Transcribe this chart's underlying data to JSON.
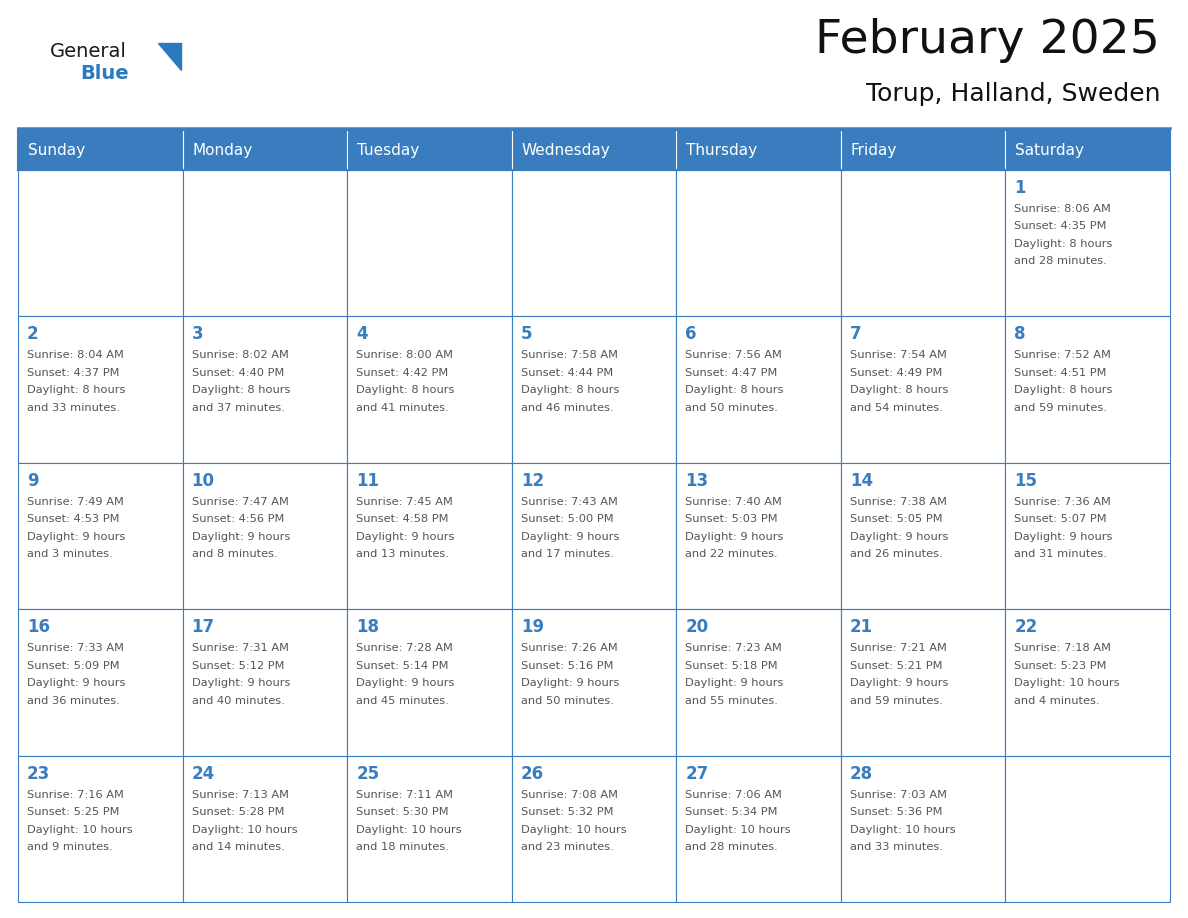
{
  "title": "February 2025",
  "subtitle": "Torup, Halland, Sweden",
  "days_of_week": [
    "Sunday",
    "Monday",
    "Tuesday",
    "Wednesday",
    "Thursday",
    "Friday",
    "Saturday"
  ],
  "header_bg": "#3a7dbf",
  "header_text": "#ffffff",
  "cell_bg": "#ffffff",
  "border_color": "#3a7dbf",
  "day_num_color": "#3a7dbf",
  "info_color": "#555555",
  "title_color": "#111111",
  "weeks": [
    [
      {
        "day": null,
        "sunrise": null,
        "sunset": null,
        "daylight": null
      },
      {
        "day": null,
        "sunrise": null,
        "sunset": null,
        "daylight": null
      },
      {
        "day": null,
        "sunrise": null,
        "sunset": null,
        "daylight": null
      },
      {
        "day": null,
        "sunrise": null,
        "sunset": null,
        "daylight": null
      },
      {
        "day": null,
        "sunrise": null,
        "sunset": null,
        "daylight": null
      },
      {
        "day": null,
        "sunrise": null,
        "sunset": null,
        "daylight": null
      },
      {
        "day": 1,
        "sunrise": "8:06 AM",
        "sunset": "4:35 PM",
        "daylight": "8 hours\nand 28 minutes."
      }
    ],
    [
      {
        "day": 2,
        "sunrise": "8:04 AM",
        "sunset": "4:37 PM",
        "daylight": "8 hours\nand 33 minutes."
      },
      {
        "day": 3,
        "sunrise": "8:02 AM",
        "sunset": "4:40 PM",
        "daylight": "8 hours\nand 37 minutes."
      },
      {
        "day": 4,
        "sunrise": "8:00 AM",
        "sunset": "4:42 PM",
        "daylight": "8 hours\nand 41 minutes."
      },
      {
        "day": 5,
        "sunrise": "7:58 AM",
        "sunset": "4:44 PM",
        "daylight": "8 hours\nand 46 minutes."
      },
      {
        "day": 6,
        "sunrise": "7:56 AM",
        "sunset": "4:47 PM",
        "daylight": "8 hours\nand 50 minutes."
      },
      {
        "day": 7,
        "sunrise": "7:54 AM",
        "sunset": "4:49 PM",
        "daylight": "8 hours\nand 54 minutes."
      },
      {
        "day": 8,
        "sunrise": "7:52 AM",
        "sunset": "4:51 PM",
        "daylight": "8 hours\nand 59 minutes."
      }
    ],
    [
      {
        "day": 9,
        "sunrise": "7:49 AM",
        "sunset": "4:53 PM",
        "daylight": "9 hours\nand 3 minutes."
      },
      {
        "day": 10,
        "sunrise": "7:47 AM",
        "sunset": "4:56 PM",
        "daylight": "9 hours\nand 8 minutes."
      },
      {
        "day": 11,
        "sunrise": "7:45 AM",
        "sunset": "4:58 PM",
        "daylight": "9 hours\nand 13 minutes."
      },
      {
        "day": 12,
        "sunrise": "7:43 AM",
        "sunset": "5:00 PM",
        "daylight": "9 hours\nand 17 minutes."
      },
      {
        "day": 13,
        "sunrise": "7:40 AM",
        "sunset": "5:03 PM",
        "daylight": "9 hours\nand 22 minutes."
      },
      {
        "day": 14,
        "sunrise": "7:38 AM",
        "sunset": "5:05 PM",
        "daylight": "9 hours\nand 26 minutes."
      },
      {
        "day": 15,
        "sunrise": "7:36 AM",
        "sunset": "5:07 PM",
        "daylight": "9 hours\nand 31 minutes."
      }
    ],
    [
      {
        "day": 16,
        "sunrise": "7:33 AM",
        "sunset": "5:09 PM",
        "daylight": "9 hours\nand 36 minutes."
      },
      {
        "day": 17,
        "sunrise": "7:31 AM",
        "sunset": "5:12 PM",
        "daylight": "9 hours\nand 40 minutes."
      },
      {
        "day": 18,
        "sunrise": "7:28 AM",
        "sunset": "5:14 PM",
        "daylight": "9 hours\nand 45 minutes."
      },
      {
        "day": 19,
        "sunrise": "7:26 AM",
        "sunset": "5:16 PM",
        "daylight": "9 hours\nand 50 minutes."
      },
      {
        "day": 20,
        "sunrise": "7:23 AM",
        "sunset": "5:18 PM",
        "daylight": "9 hours\nand 55 minutes."
      },
      {
        "day": 21,
        "sunrise": "7:21 AM",
        "sunset": "5:21 PM",
        "daylight": "9 hours\nand 59 minutes."
      },
      {
        "day": 22,
        "sunrise": "7:18 AM",
        "sunset": "5:23 PM",
        "daylight": "10 hours\nand 4 minutes."
      }
    ],
    [
      {
        "day": 23,
        "sunrise": "7:16 AM",
        "sunset": "5:25 PM",
        "daylight": "10 hours\nand 9 minutes."
      },
      {
        "day": 24,
        "sunrise": "7:13 AM",
        "sunset": "5:28 PM",
        "daylight": "10 hours\nand 14 minutes."
      },
      {
        "day": 25,
        "sunrise": "7:11 AM",
        "sunset": "5:30 PM",
        "daylight": "10 hours\nand 18 minutes."
      },
      {
        "day": 26,
        "sunrise": "7:08 AM",
        "sunset": "5:32 PM",
        "daylight": "10 hours\nand 23 minutes."
      },
      {
        "day": 27,
        "sunrise": "7:06 AM",
        "sunset": "5:34 PM",
        "daylight": "10 hours\nand 28 minutes."
      },
      {
        "day": 28,
        "sunrise": "7:03 AM",
        "sunset": "5:36 PM",
        "daylight": "10 hours\nand 33 minutes."
      },
      {
        "day": null,
        "sunrise": null,
        "sunset": null,
        "daylight": null
      }
    ]
  ],
  "logo_general_color": "#1a1a1a",
  "logo_blue_color": "#2b7abf",
  "fig_width": 11.88,
  "fig_height": 9.18
}
